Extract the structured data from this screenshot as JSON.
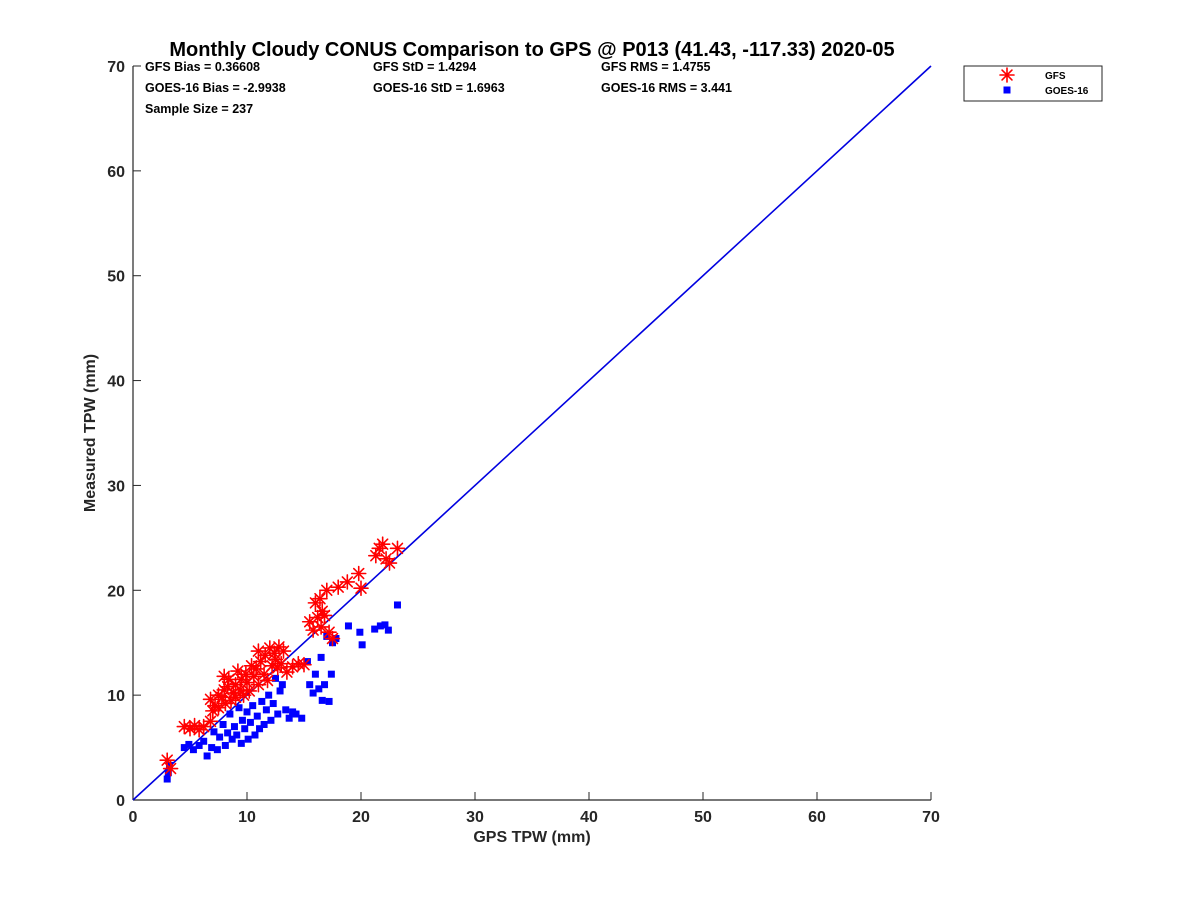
{
  "chart_data": {
    "type": "scatter",
    "title": "Monthly Cloudy CONUS Comparison to GPS @ P013 (41.43, -117.33) 2020-05",
    "xlabel": "GPS TPW (mm)",
    "ylabel": "Measured TPW (mm)",
    "xlim": [
      0,
      70
    ],
    "ylim": [
      0,
      70
    ],
    "xticks": [
      "0",
      "10",
      "20",
      "30",
      "40",
      "50",
      "60",
      "70"
    ],
    "yticks": [
      "0",
      "10",
      "20",
      "30",
      "40",
      "50",
      "60",
      "70"
    ],
    "grid": false,
    "legend_position": "outside-top-right",
    "reference_line": {
      "x": [
        0,
        70
      ],
      "y": [
        0,
        70
      ],
      "color": "#0000e0"
    },
    "stats": [
      [
        "GFS Bias = 0.36608",
        "GFS StD = 1.4294",
        "GFS RMS = 1.4755"
      ],
      [
        "GOES-16 Bias = -2.9938",
        "GOES-16 StD = 1.6963",
        "GOES-16 RMS = 3.441"
      ],
      [
        "Sample Size = 237",
        "",
        ""
      ]
    ],
    "series": [
      {
        "name": "GFS",
        "marker": "asterisk",
        "color": "#ff0000",
        "points": [
          [
            3.0,
            3.8
          ],
          [
            3.3,
            3.0
          ],
          [
            4.5,
            7.0
          ],
          [
            5.0,
            6.8
          ],
          [
            5.4,
            7.1
          ],
          [
            5.8,
            6.7
          ],
          [
            6.2,
            7.0
          ],
          [
            6.8,
            7.5
          ],
          [
            6.8,
            9.6
          ],
          [
            7.0,
            8.5
          ],
          [
            7.2,
            9.0
          ],
          [
            7.5,
            10.0
          ],
          [
            7.5,
            8.8
          ],
          [
            7.8,
            9.8
          ],
          [
            8.0,
            11.8
          ],
          [
            8.0,
            10.5
          ],
          [
            8.1,
            9.2
          ],
          [
            8.3,
            10.8
          ],
          [
            8.4,
            11.5
          ],
          [
            8.6,
            9.5
          ],
          [
            8.8,
            10.2
          ],
          [
            9.0,
            11.0
          ],
          [
            9.0,
            9.8
          ],
          [
            9.2,
            12.3
          ],
          [
            9.4,
            10.5
          ],
          [
            9.5,
            11.5
          ],
          [
            9.7,
            10.0
          ],
          [
            9.9,
            12.0
          ],
          [
            10.0,
            11.2
          ],
          [
            10.2,
            10.4
          ],
          [
            10.4,
            12.8
          ],
          [
            10.6,
            11.8
          ],
          [
            10.8,
            12.5
          ],
          [
            11.0,
            14.2
          ],
          [
            11.0,
            11.0
          ],
          [
            11.2,
            13.2
          ],
          [
            11.5,
            12.0
          ],
          [
            11.6,
            13.8
          ],
          [
            11.8,
            11.4
          ],
          [
            12.0,
            14.5
          ],
          [
            12.2,
            12.8
          ],
          [
            12.4,
            14.0
          ],
          [
            12.5,
            13.4
          ],
          [
            12.7,
            12.6
          ],
          [
            12.8,
            14.6
          ],
          [
            13.0,
            13.0
          ],
          [
            13.2,
            14.2
          ],
          [
            13.5,
            12.2
          ],
          [
            14.0,
            12.7
          ],
          [
            14.5,
            13.0
          ],
          [
            15.0,
            12.9
          ],
          [
            15.5,
            17.0
          ],
          [
            15.8,
            16.2
          ],
          [
            16.0,
            18.8
          ],
          [
            16.2,
            17.4
          ],
          [
            16.4,
            19.2
          ],
          [
            16.5,
            16.5
          ],
          [
            16.6,
            18.0
          ],
          [
            16.8,
            17.6
          ],
          [
            17.0,
            20.0
          ],
          [
            17.2,
            16.0
          ],
          [
            17.5,
            15.4
          ],
          [
            18.0,
            20.3
          ],
          [
            18.8,
            20.8
          ],
          [
            19.8,
            21.6
          ],
          [
            20.0,
            20.2
          ],
          [
            21.3,
            23.3
          ],
          [
            21.6,
            24.0
          ],
          [
            21.9,
            24.4
          ],
          [
            22.2,
            23.0
          ],
          [
            22.5,
            22.6
          ],
          [
            23.2,
            24.0
          ]
        ]
      },
      {
        "name": "GOES-16",
        "marker": "square",
        "color": "#0000ff",
        "points": [
          [
            3.0,
            2.0
          ],
          [
            3.1,
            2.6
          ],
          [
            3.2,
            3.3
          ],
          [
            4.5,
            5.0
          ],
          [
            4.9,
            5.3
          ],
          [
            5.3,
            4.8
          ],
          [
            5.8,
            5.2
          ],
          [
            6.2,
            5.6
          ],
          [
            6.5,
            4.2
          ],
          [
            6.9,
            5.0
          ],
          [
            7.1,
            6.5
          ],
          [
            7.4,
            4.8
          ],
          [
            7.6,
            6.0
          ],
          [
            7.9,
            7.2
          ],
          [
            8.1,
            5.2
          ],
          [
            8.3,
            6.4
          ],
          [
            8.5,
            8.2
          ],
          [
            8.7,
            5.8
          ],
          [
            8.9,
            7.0
          ],
          [
            9.1,
            6.2
          ],
          [
            9.3,
            8.8
          ],
          [
            9.5,
            5.4
          ],
          [
            9.6,
            7.6
          ],
          [
            9.8,
            6.8
          ],
          [
            10.0,
            8.4
          ],
          [
            10.1,
            5.8
          ],
          [
            10.3,
            7.4
          ],
          [
            10.5,
            9.0
          ],
          [
            10.7,
            6.2
          ],
          [
            10.9,
            8.0
          ],
          [
            11.1,
            6.8
          ],
          [
            11.3,
            9.4
          ],
          [
            11.5,
            7.2
          ],
          [
            11.7,
            8.6
          ],
          [
            11.9,
            10.0
          ],
          [
            12.1,
            7.6
          ],
          [
            12.3,
            9.2
          ],
          [
            12.5,
            11.6
          ],
          [
            12.7,
            8.2
          ],
          [
            12.9,
            10.4
          ],
          [
            13.1,
            11.0
          ],
          [
            13.4,
            8.6
          ],
          [
            13.7,
            7.8
          ],
          [
            14.0,
            8.4
          ],
          [
            14.3,
            8.2
          ],
          [
            14.8,
            7.8
          ],
          [
            15.3,
            13.2
          ],
          [
            15.5,
            11.0
          ],
          [
            15.8,
            10.2
          ],
          [
            16.0,
            12.0
          ],
          [
            16.3,
            10.6
          ],
          [
            16.5,
            13.6
          ],
          [
            16.6,
            9.5
          ],
          [
            16.8,
            11.0
          ],
          [
            17.0,
            15.6
          ],
          [
            17.2,
            9.4
          ],
          [
            17.4,
            12.0
          ],
          [
            17.5,
            15.0
          ],
          [
            17.8,
            15.4
          ],
          [
            18.9,
            16.6
          ],
          [
            19.9,
            16.0
          ],
          [
            20.1,
            14.8
          ],
          [
            21.2,
            16.3
          ],
          [
            21.7,
            16.6
          ],
          [
            22.1,
            16.7
          ],
          [
            22.4,
            16.2
          ],
          [
            23.2,
            18.6
          ]
        ]
      }
    ]
  }
}
